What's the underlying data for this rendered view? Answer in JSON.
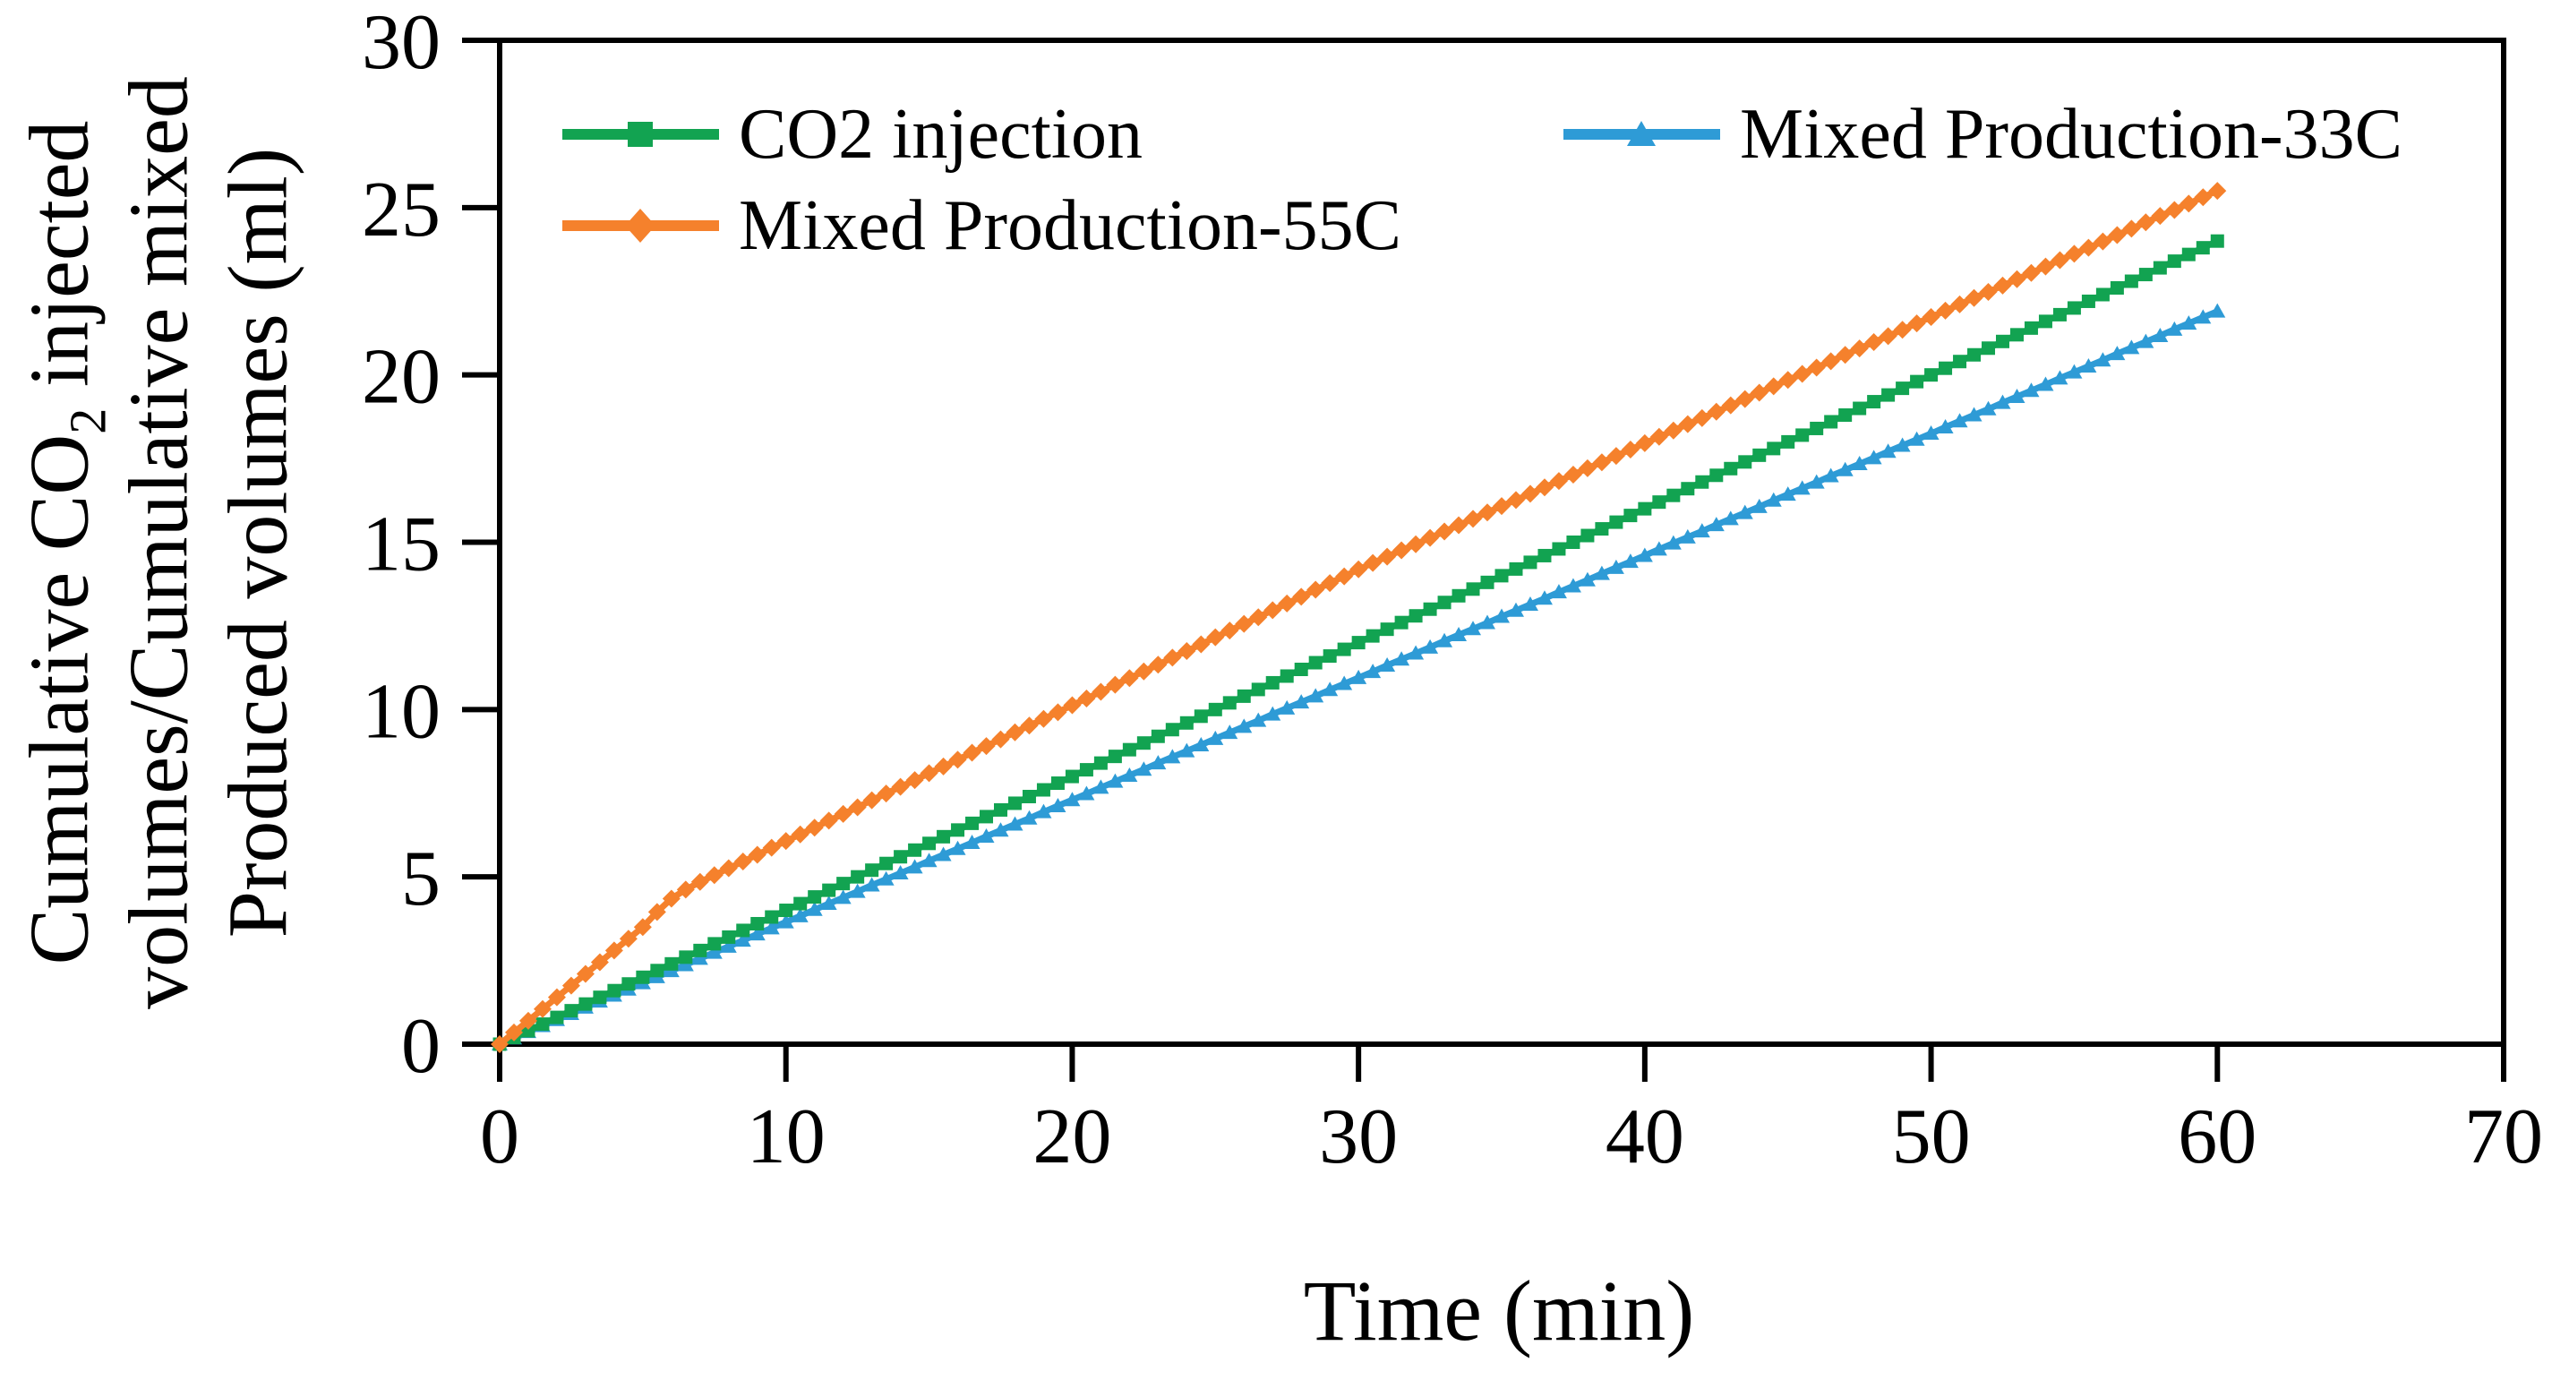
{
  "chart_data": {
    "type": "line",
    "title": "",
    "xlabel": "Time (min)",
    "ylabel_lines": {
      "line1_pre": "Cumulative CO",
      "line1_sub": "2",
      "line1_post": " injected",
      "line2": "volumes/Cumulative mixed",
      "line3": "Produced volumes (ml)"
    },
    "x_axis": {
      "min": 0,
      "max": 70,
      "ticks": [
        0,
        10,
        20,
        30,
        40,
        50,
        60,
        70
      ]
    },
    "y_axis": {
      "min": 0,
      "max": 30,
      "ticks": [
        0,
        5,
        10,
        15,
        20,
        25,
        30
      ]
    },
    "grid": false,
    "legend_position": "top-inside-two-columns",
    "frame_color": "#000000",
    "x": {
      "start": 0,
      "step": 0.5,
      "end": 60
    },
    "series": [
      {
        "name": "CO2 injection",
        "color": "#12A351",
        "marker": "square",
        "values": [
          0,
          0.2,
          0.4,
          0.6,
          0.8,
          1,
          1.2,
          1.4,
          1.6,
          1.8,
          2,
          2.2,
          2.4,
          2.6,
          2.8,
          3,
          3.2,
          3.4,
          3.6,
          3.8,
          4,
          4.2,
          4.4,
          4.6,
          4.8,
          5,
          5.2,
          5.4,
          5.6,
          5.8,
          6,
          6.2,
          6.4,
          6.6,
          6.8,
          7,
          7.2,
          7.4,
          7.6,
          7.8,
          8,
          8.2,
          8.4,
          8.6,
          8.8,
          9,
          9.2,
          9.4,
          9.6,
          9.8,
          10,
          10.2,
          10.4,
          10.6,
          10.8,
          11,
          11.2,
          11.4,
          11.6,
          11.8,
          12,
          12.2,
          12.4,
          12.6,
          12.8,
          13,
          13.2,
          13.4,
          13.6,
          13.8,
          14,
          14.2,
          14.4,
          14.6,
          14.8,
          15,
          15.2,
          15.4,
          15.6,
          15.8,
          16,
          16.2,
          16.4,
          16.6,
          16.8,
          17,
          17.2,
          17.4,
          17.6,
          17.8,
          18,
          18.2,
          18.4,
          18.6,
          18.8,
          19,
          19.2,
          19.4,
          19.6,
          19.8,
          20,
          20.2,
          20.4,
          20.6,
          20.8,
          21,
          21.2,
          21.4,
          21.6,
          21.8,
          22,
          22.2,
          22.4,
          22.6,
          22.8,
          23,
          23.2,
          23.4,
          23.6,
          23.8,
          24
        ]
      },
      {
        "name": "Mixed Production-55C",
        "color": "#F5812C",
        "marker": "diamond",
        "values": [
          0,
          0.35,
          0.7,
          1.05,
          1.4,
          1.75,
          2.1,
          2.45,
          2.8,
          3.15,
          3.5,
          3.95,
          4.35,
          4.62,
          4.85,
          5.05,
          5.26,
          5.46,
          5.66,
          5.87,
          6.07,
          6.27,
          6.47,
          6.68,
          6.88,
          7.08,
          7.29,
          7.49,
          7.69,
          7.89,
          8.1,
          8.3,
          8.5,
          8.71,
          8.91,
          9.11,
          9.32,
          9.52,
          9.72,
          9.92,
          10.13,
          10.33,
          10.53,
          10.74,
          10.94,
          11.14,
          11.34,
          11.55,
          11.75,
          11.95,
          12.16,
          12.36,
          12.56,
          12.76,
          12.97,
          13.17,
          13.37,
          13.58,
          13.78,
          13.98,
          14.19,
          14.38,
          14.57,
          14.76,
          14.94,
          15.13,
          15.32,
          15.51,
          15.7,
          15.89,
          16.08,
          16.26,
          16.45,
          16.64,
          16.83,
          17.02,
          17.21,
          17.39,
          17.58,
          17.77,
          17.96,
          18.15,
          18.34,
          18.53,
          18.71,
          18.9,
          19.09,
          19.28,
          19.47,
          19.66,
          19.85,
          20.03,
          20.22,
          20.41,
          20.6,
          20.79,
          20.98,
          21.16,
          21.35,
          21.54,
          21.73,
          21.92,
          22.11,
          22.3,
          22.48,
          22.67,
          22.86,
          23.05,
          23.24,
          23.43,
          23.62,
          23.8,
          23.99,
          24.18,
          24.37,
          24.56,
          24.75,
          24.93,
          25.12,
          25.31,
          25.5
        ]
      },
      {
        "name": "Mixed Production-33C",
        "color": "#2E9BD6",
        "marker": "triangle",
        "values": [
          0,
          0.18,
          0.37,
          0.55,
          0.73,
          0.91,
          1.1,
          1.28,
          1.46,
          1.64,
          1.83,
          2.01,
          2.19,
          2.37,
          2.56,
          2.74,
          2.92,
          3.1,
          3.29,
          3.47,
          3.65,
          3.83,
          4.02,
          4.2,
          4.38,
          4.56,
          4.75,
          4.93,
          5.11,
          5.29,
          5.48,
          5.66,
          5.84,
          6.02,
          6.21,
          6.39,
          6.57,
          6.75,
          6.94,
          7.12,
          7.3,
          7.48,
          7.67,
          7.85,
          8.03,
          8.21,
          8.4,
          8.58,
          8.76,
          8.94,
          9.13,
          9.31,
          9.49,
          9.67,
          9.86,
          10.04,
          10.22,
          10.4,
          10.59,
          10.77,
          10.95,
          11.13,
          11.32,
          11.5,
          11.68,
          11.86,
          12.05,
          12.23,
          12.41,
          12.59,
          12.78,
          12.96,
          13.14,
          13.32,
          13.51,
          13.69,
          13.87,
          14.06,
          14.24,
          14.42,
          14.6,
          14.79,
          14.97,
          15.15,
          15.33,
          15.52,
          15.7,
          15.88,
          16.06,
          16.25,
          16.43,
          16.61,
          16.79,
          16.98,
          17.16,
          17.34,
          17.52,
          17.71,
          17.89,
          18.07,
          18.25,
          18.44,
          18.62,
          18.8,
          18.98,
          19.17,
          19.35,
          19.53,
          19.71,
          19.9,
          20.08,
          20.26,
          20.44,
          20.63,
          20.81,
          20.99,
          21.17,
          21.36,
          21.54,
          21.72,
          21.9
        ]
      }
    ]
  }
}
